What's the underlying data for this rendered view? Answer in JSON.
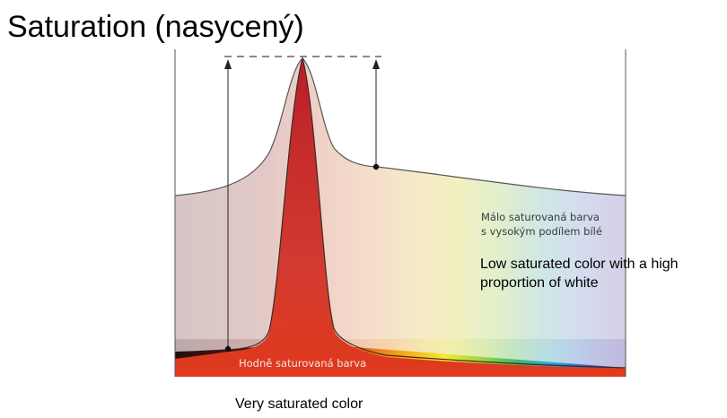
{
  "title": "Saturation (nasycený)",
  "diagram": {
    "label_low_cz_line1": "Málo saturovaná barva",
    "label_low_cz_line2": "s vysokým podílem bílé",
    "label_high_cz": "Hodně saturovaná barva",
    "label_low_en_line1": "Low saturated color with a high",
    "label_low_en_line2": "proportion of white",
    "label_high_en": "Very saturated color",
    "colors": {
      "peak_red": "#c62828",
      "low_sat_fill": "#e8c7c2",
      "axis": "#555555",
      "arrow": "#222222"
    }
  }
}
